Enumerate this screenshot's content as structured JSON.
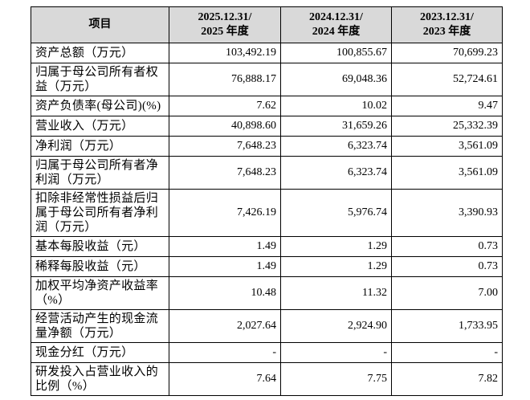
{
  "table": {
    "header": [
      "项目",
      [
        "2025.12.31/",
        "2025 年度"
      ],
      [
        "2024.12.31/",
        "2024 年度"
      ],
      [
        "2023.12.31/",
        "2023 年度"
      ]
    ],
    "rows": [
      [
        "资产总额（万元）",
        "103,492.19",
        "100,855.67",
        "70,699.23"
      ],
      [
        "归属于母公司所有者权益（万元）",
        "76,888.17",
        "69,048.36",
        "52,724.61"
      ],
      [
        "资产负债率(母公司)(%)",
        "7.62",
        "10.02",
        "9.47"
      ],
      [
        "营业收入（万元）",
        "40,898.60",
        "31,659.26",
        "25,332.39"
      ],
      [
        "净利润（万元）",
        "7,648.23",
        "6,323.74",
        "3,561.09"
      ],
      [
        "归属于母公司所有者净利润（万元）",
        "7,648.23",
        "6,323.74",
        "3,561.09"
      ],
      [
        "扣除非经常性损益后归属于母公司所有者净利润（万元）",
        "7,426.19",
        "5,976.74",
        "3,390.93"
      ],
      [
        "基本每股收益（元）",
        "1.49",
        "1.29",
        "0.73"
      ],
      [
        "稀释每股收益（元）",
        "1.49",
        "1.29",
        "0.73"
      ],
      [
        "加权平均净资产收益率（%）",
        "10.48",
        "11.32",
        "7.00"
      ],
      [
        "经营活动产生的现金流量净额（万元）",
        "2,027.64",
        "2,924.90",
        "1,733.95"
      ],
      [
        "现金分红（万元）",
        "-",
        "-",
        "-"
      ],
      [
        "研发投入占营业收入的比例（%）",
        "7.64",
        "7.75",
        "7.82"
      ]
    ]
  }
}
